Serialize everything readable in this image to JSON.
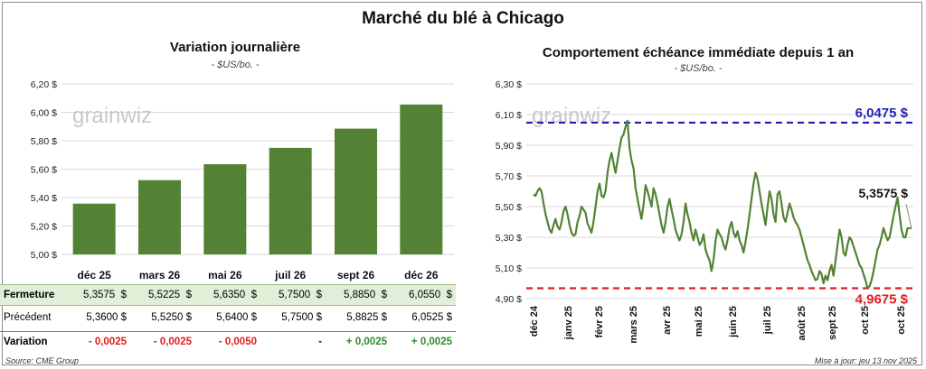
{
  "title": "Marché du blé à Chicago",
  "watermark": "grainwiz",
  "left_panel": {
    "title": "Variation journalière",
    "unit": "- $US/bo. -"
  },
  "right_panel": {
    "title": "Comportement échéance immédiate depuis 1 an",
    "unit": "- $US/bo. -"
  },
  "table": {
    "rows": [
      {
        "label": "Fermeture",
        "values": [
          "5,3575  $",
          "5,5225  $",
          "5,6350  $",
          "5,7500  $",
          "5,8850  $",
          "6,0550  $"
        ]
      },
      {
        "label": "Précédent",
        "values": [
          "5,3600 $",
          "5,5250 $",
          "5,6400 $",
          "5,7500 $",
          "5,8825 $",
          "6,0525 $"
        ]
      },
      {
        "label": "Variation",
        "values": [
          "- 0,0025",
          "- 0,0025",
          "- 0,0050",
          "-",
          "+ 0,0025",
          "+ 0,0025"
        ]
      }
    ],
    "variation_colors": [
      "#e01e1e",
      "#e01e1e",
      "#e01e1e",
      "#111111",
      "#2e8b2e",
      "#2e8b2e"
    ],
    "highlight_color": "#e2efd8"
  },
  "footer": {
    "source": "Source: CME Group",
    "updated": "Mise à jour: jeu 13 nov 2025"
  },
  "chart_data": [
    {
      "type": "bar",
      "categories": [
        "déc 25",
        "mars 26",
        "mai 26",
        "juil 26",
        "sept 26",
        "déc 26"
      ],
      "values": [
        5.3575,
        5.5225,
        5.635,
        5.75,
        5.885,
        6.055
      ],
      "ylim": [
        5.0,
        6.2
      ],
      "yticks": [
        "5,00 $",
        "5,20 $",
        "5,40 $",
        "5,60 $",
        "5,80 $",
        "6,00 $",
        "6,20 $"
      ],
      "color": "#548235",
      "grid": true
    },
    {
      "type": "line",
      "xlabels": [
        "déc 24",
        "janv 25",
        "févr 25",
        "mars 25",
        "avr 25",
        "mai 25",
        "juin 25",
        "juil 25",
        "août 25",
        "sept 25",
        "oct 25",
        "oct 25"
      ],
      "ylim": [
        4.9,
        6.3
      ],
      "yticks": [
        "4,90 $",
        "5,10 $",
        "5,30 $",
        "5,50 $",
        "5,70 $",
        "5,90 $",
        "6,10 $",
        "6,30 $"
      ],
      "values": [
        5.58,
        5.57,
        5.6,
        5.62,
        5.6,
        5.52,
        5.45,
        5.4,
        5.35,
        5.33,
        5.38,
        5.42,
        5.37,
        5.35,
        5.4,
        5.47,
        5.5,
        5.45,
        5.38,
        5.33,
        5.31,
        5.32,
        5.4,
        5.44,
        5.5,
        5.48,
        5.46,
        5.39,
        5.36,
        5.33,
        5.4,
        5.5,
        5.6,
        5.65,
        5.57,
        5.56,
        5.6,
        5.72,
        5.8,
        5.85,
        5.78,
        5.72,
        5.8,
        5.88,
        5.95,
        5.97,
        6.02,
        6.06,
        5.88,
        5.8,
        5.75,
        5.62,
        5.55,
        5.48,
        5.42,
        5.51,
        5.64,
        5.6,
        5.55,
        5.5,
        5.62,
        5.58,
        5.52,
        5.45,
        5.38,
        5.33,
        5.4,
        5.5,
        5.55,
        5.48,
        5.42,
        5.35,
        5.31,
        5.28,
        5.32,
        5.4,
        5.52,
        5.45,
        5.4,
        5.33,
        5.28,
        5.35,
        5.3,
        5.25,
        5.27,
        5.32,
        5.22,
        5.18,
        5.15,
        5.08,
        5.15,
        5.28,
        5.35,
        5.32,
        5.3,
        5.25,
        5.22,
        5.28,
        5.36,
        5.4,
        5.33,
        5.3,
        5.34,
        5.28,
        5.25,
        5.2,
        5.27,
        5.35,
        5.45,
        5.55,
        5.65,
        5.72,
        5.68,
        5.6,
        5.52,
        5.45,
        5.38,
        5.5,
        5.6,
        5.55,
        5.45,
        5.4,
        5.58,
        5.6,
        5.52,
        5.43,
        5.4,
        5.46,
        5.52,
        5.48,
        5.43,
        5.4,
        5.38,
        5.35,
        5.3,
        5.25,
        5.2,
        5.15,
        5.12,
        5.08,
        5.05,
        5.02,
        5.03,
        5.08,
        5.06,
        5.0,
        5.05,
        5.02,
        5.08,
        5.12,
        5.05,
        5.15,
        5.25,
        5.35,
        5.3,
        5.2,
        5.18,
        5.25,
        5.3,
        5.28,
        5.24,
        5.2,
        5.16,
        5.12,
        5.1,
        5.06,
        5.02,
        4.97,
        4.98,
        5.02,
        5.08,
        5.15,
        5.22,
        5.25,
        5.3,
        5.36,
        5.32,
        5.28,
        5.3,
        5.37,
        5.44,
        5.5,
        5.56,
        5.45,
        5.35,
        5.3,
        5.3,
        5.36,
        5.36,
        5.3575
      ],
      "hlines": [
        {
          "value": 6.0475,
          "label": "6,0475 $",
          "color": "#1f1fb4"
        },
        {
          "value": 4.9675,
          "label": "4,9675 $",
          "color": "#e01e1e"
        }
      ],
      "last_label": "5,3575 $",
      "color": "#548235",
      "grid": true
    }
  ]
}
